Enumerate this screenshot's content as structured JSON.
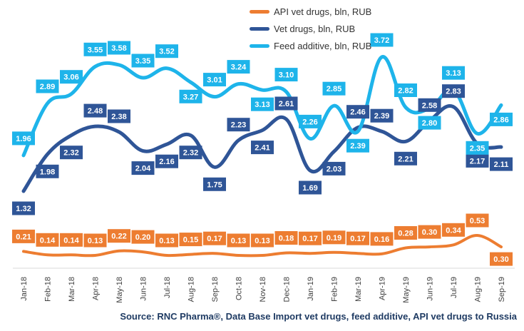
{
  "chart_data": {
    "type": "line",
    "categories": [
      "Jan-18",
      "Feb-18",
      "Mar-18",
      "Apr-18",
      "May-18",
      "Jun-18",
      "Jul-18",
      "Aug-18",
      "Sep-18",
      "Oct-18",
      "Nov-18",
      "Dec-18",
      "Jan-19",
      "Feb-19",
      "Mar-19",
      "Apr-19",
      "May-19",
      "Jun-19",
      "Jul-19",
      "Aug-19",
      "Sep-19"
    ],
    "series": [
      {
        "name": "API vet drugs, bln, RUB",
        "color": "#ed7d31",
        "values": [
          0.21,
          0.14,
          0.14,
          0.13,
          0.22,
          0.2,
          0.13,
          0.15,
          0.17,
          0.13,
          0.13,
          0.18,
          0.17,
          0.19,
          0.17,
          0.16,
          0.28,
          0.3,
          0.34,
          0.53,
          0.3
        ]
      },
      {
        "name": "Vet drugs, bln, RUB",
        "color": "#2f5597",
        "values": [
          1.32,
          1.98,
          2.32,
          2.48,
          2.38,
          2.04,
          2.16,
          2.32,
          1.75,
          2.23,
          2.41,
          2.61,
          1.69,
          2.03,
          2.46,
          2.39,
          2.21,
          2.58,
          2.83,
          2.17,
          2.11
        ]
      },
      {
        "name": "Feed additive, bln, RUB",
        "color": "#1eb4ea",
        "values": [
          1.96,
          2.89,
          3.06,
          3.55,
          3.58,
          3.35,
          3.52,
          3.27,
          3.01,
          3.24,
          3.13,
          3.1,
          2.26,
          2.85,
          2.39,
          3.72,
          2.82,
          2.8,
          3.13,
          2.35,
          2.86
        ]
      }
    ],
    "title": "",
    "xlabel": "",
    "ylabel": "",
    "legend_position": "top-center",
    "grid": false
  },
  "source": "Source: RNC Pharma®, Data Base Import vet drugs, feed additive, API vet drugs to Russia"
}
